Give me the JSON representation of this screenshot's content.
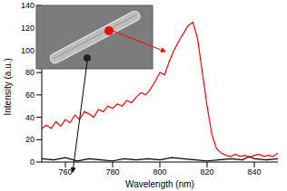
{
  "chart_data": {
    "type": "line",
    "x_label": "Wavelength (nm)",
    "y_label": "Intensity (a.u.)",
    "xlim": [
      750,
      850
    ],
    "xticks": [
      760,
      780,
      800,
      820,
      840
    ],
    "ylim": [
      0,
      140
    ],
    "yticks": [
      0,
      20,
      40,
      60,
      80,
      100,
      120,
      140
    ],
    "grid": false,
    "series": [
      {
        "color": "#ff0000",
        "x": [
          750,
          752,
          754,
          756,
          758,
          760,
          762,
          764,
          766,
          768,
          770,
          772,
          774,
          776,
          778,
          780,
          782,
          784,
          786,
          788,
          790,
          792,
          794,
          796,
          798,
          800,
          802,
          804,
          806,
          808,
          810,
          812,
          814,
          816,
          818,
          820,
          822,
          824,
          826,
          828,
          830,
          832,
          834,
          836,
          838,
          840,
          842,
          844,
          846,
          848,
          850
        ],
        "values": [
          30,
          33,
          30,
          36,
          32,
          38,
          35,
          42,
          38,
          45,
          43,
          40,
          47,
          45,
          50,
          48,
          52,
          50,
          55,
          53,
          58,
          62,
          60,
          65,
          72,
          80,
          78,
          90,
          100,
          108,
          115,
          122,
          125,
          110,
          80,
          50,
          25,
          12,
          8,
          6,
          5,
          7,
          5,
          6,
          4,
          6,
          7,
          5,
          6,
          5,
          8
        ]
      },
      {
        "color": "#000000",
        "x": [
          750,
          755,
          760,
          765,
          770,
          775,
          780,
          785,
          790,
          795,
          800,
          805,
          810,
          815,
          820,
          825,
          830,
          835,
          838,
          840,
          845,
          850
        ],
        "values": [
          3,
          2,
          4,
          1,
          3,
          2,
          1,
          3,
          2,
          3,
          2,
          4,
          3,
          2,
          1,
          2,
          3,
          2,
          5,
          3,
          2,
          3
        ]
      }
    ]
  }
}
